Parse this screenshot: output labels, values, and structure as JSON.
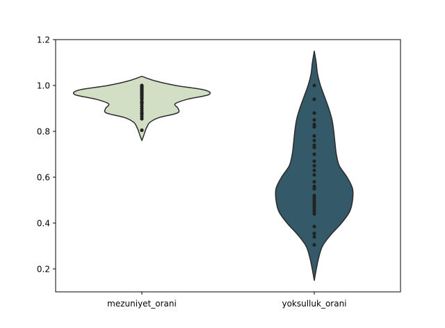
{
  "chart_data": {
    "type": "violin",
    "categories": [
      "mezuniyet_orani",
      "yoksulluk_orani"
    ],
    "colors": [
      "#d2dfc4",
      "#345a69"
    ],
    "edge_color": "#2a2a2a",
    "ylim": [
      0.1,
      1.2
    ],
    "yticks": [
      0.2,
      0.4,
      0.6,
      0.8,
      1.0,
      1.2
    ],
    "ytick_labels": [
      "0.2",
      "0.4",
      "0.6",
      "0.8",
      "1.0",
      "1.2"
    ],
    "grid": false,
    "inner": "point",
    "violins": [
      {
        "name": "mezuniyet_orani",
        "profile": [
          [
            0.76,
            0.0
          ],
          [
            0.78,
            0.01
          ],
          [
            0.8,
            0.019
          ],
          [
            0.82,
            0.03
          ],
          [
            0.84,
            0.048
          ],
          [
            0.86,
            0.1
          ],
          [
            0.88,
            0.206
          ],
          [
            0.9,
            0.21
          ],
          [
            0.92,
            0.193
          ],
          [
            0.94,
            0.265
          ],
          [
            0.96,
            0.388
          ],
          [
            0.98,
            0.365
          ],
          [
            1.0,
            0.196
          ],
          [
            1.02,
            0.077
          ],
          [
            1.04,
            0.0
          ]
        ],
        "points": [
          0.805,
          0.855,
          0.865,
          0.875,
          0.88,
          0.89,
          0.9,
          0.91,
          0.92,
          0.925,
          0.93,
          0.94,
          0.945,
          0.95,
          0.955,
          0.96,
          0.965,
          0.97,
          0.975,
          0.98,
          0.985,
          0.99,
          0.995,
          1.0
        ]
      },
      {
        "name": "yoksulluk_orani",
        "profile": [
          [
            0.15,
            0.0
          ],
          [
            0.2,
            0.012
          ],
          [
            0.25,
            0.026
          ],
          [
            0.3,
            0.048
          ],
          [
            0.35,
            0.097
          ],
          [
            0.4,
            0.158
          ],
          [
            0.45,
            0.205
          ],
          [
            0.5,
            0.222
          ],
          [
            0.55,
            0.222
          ],
          [
            0.6,
            0.19
          ],
          [
            0.65,
            0.145
          ],
          [
            0.7,
            0.128
          ],
          [
            0.75,
            0.12
          ],
          [
            0.8,
            0.113
          ],
          [
            0.85,
            0.103
          ],
          [
            0.9,
            0.084
          ],
          [
            0.95,
            0.06
          ],
          [
            1.0,
            0.036
          ],
          [
            1.05,
            0.019
          ],
          [
            1.1,
            0.011
          ],
          [
            1.15,
            0.0
          ]
        ],
        "points": [
          0.305,
          0.34,
          0.355,
          0.385,
          0.44,
          0.45,
          0.46,
          0.47,
          0.48,
          0.49,
          0.5,
          0.51,
          0.52,
          0.55,
          0.56,
          0.58,
          0.61,
          0.63,
          0.65,
          0.67,
          0.7,
          0.73,
          0.74,
          0.76,
          0.78,
          0.82,
          0.83,
          0.85,
          0.88,
          0.94,
          1.0
        ]
      }
    ]
  }
}
